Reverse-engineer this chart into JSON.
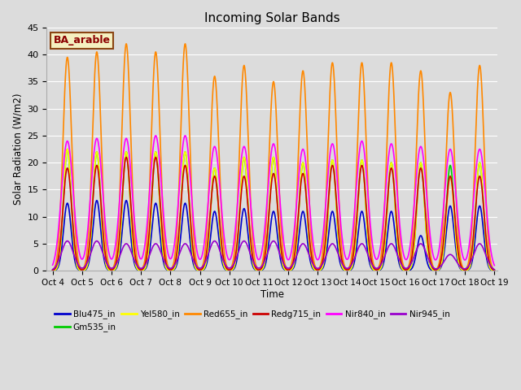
{
  "title": "Incoming Solar Bands",
  "xlabel": "Time",
  "ylabel": "Solar Radiation (W/m2)",
  "ylim": [
    0,
    45
  ],
  "background_color": "#dcdcdc",
  "annotation_text": "BA_arable",
  "annotation_bg": "#f5f0c0",
  "annotation_border": "#8b4513",
  "annotation_text_color": "#8b0000",
  "num_days": 15,
  "series": [
    {
      "name": "Blu475_in",
      "color": "#0000cc",
      "lw": 1.2
    },
    {
      "name": "Gm535_in",
      "color": "#00cc00",
      "lw": 1.2
    },
    {
      "name": "Yel580_in",
      "color": "#ffff00",
      "lw": 1.2
    },
    {
      "name": "Red655_in",
      "color": "#ff8800",
      "lw": 1.2
    },
    {
      "name": "Redg715_in",
      "color": "#cc0000",
      "lw": 1.2
    },
    {
      "name": "Nir840_in",
      "color": "#ff00ff",
      "lw": 1.2
    },
    {
      "name": "Nir945_in",
      "color": "#9900cc",
      "lw": 1.2
    }
  ],
  "tick_labels": [
    "Oct 4",
    "Oct 5",
    "Oct 6",
    "Oct 7",
    "Oct 8",
    "Oct 9",
    "Oct 10",
    "Oct 11",
    "Oct 12",
    "Oct 13",
    "Oct 14",
    "Oct 15",
    "Oct 16",
    "Oct 17",
    "Oct 18",
    "Oct 19"
  ],
  "yticks": [
    0,
    5,
    10,
    15,
    20,
    25,
    30,
    35,
    40,
    45
  ],
  "day_peaks": {
    "Blu475_in": [
      12.5,
      13.0,
      13.0,
      12.5,
      12.5,
      11.0,
      11.5,
      11.0,
      11.0,
      11.0,
      11.0,
      11.0,
      6.5,
      12.0,
      12.0
    ],
    "Gm535_in": [
      22.5,
      22.0,
      22.0,
      22.0,
      22.0,
      19.0,
      21.0,
      21.0,
      20.0,
      20.5,
      20.5,
      20.0,
      20.0,
      19.5,
      20.0
    ],
    "Yel580_in": [
      22.5,
      22.0,
      22.0,
      22.0,
      22.0,
      19.0,
      21.0,
      21.0,
      20.0,
      20.5,
      20.5,
      20.0,
      20.0,
      17.5,
      20.0
    ],
    "Red655_in": [
      39.5,
      40.5,
      42.0,
      40.5,
      42.0,
      36.0,
      38.0,
      35.0,
      37.0,
      38.5,
      38.5,
      38.5,
      37.0,
      33.0,
      38.0
    ],
    "Redg715_in": [
      19.0,
      19.5,
      21.0,
      21.0,
      19.5,
      17.5,
      17.5,
      18.0,
      18.0,
      19.5,
      19.5,
      19.0,
      19.0,
      17.5,
      17.5
    ],
    "Nir840_in": [
      24.0,
      24.5,
      24.5,
      25.0,
      25.0,
      23.0,
      23.0,
      23.5,
      22.5,
      23.5,
      24.0,
      23.5,
      23.0,
      22.5,
      22.5
    ],
    "Nir945_in": [
      5.5,
      5.5,
      5.0,
      5.0,
      5.0,
      5.5,
      5.5,
      5.5,
      5.0,
      5.0,
      5.0,
      5.0,
      5.0,
      3.0,
      5.0
    ]
  },
  "spike_widths": {
    "Blu475_in": 0.13,
    "Gm535_in": 0.13,
    "Yel580_in": 0.13,
    "Red655_in": 0.15,
    "Redg715_in": 0.15,
    "Nir840_in": 0.2,
    "Nir945_in": 0.2
  }
}
